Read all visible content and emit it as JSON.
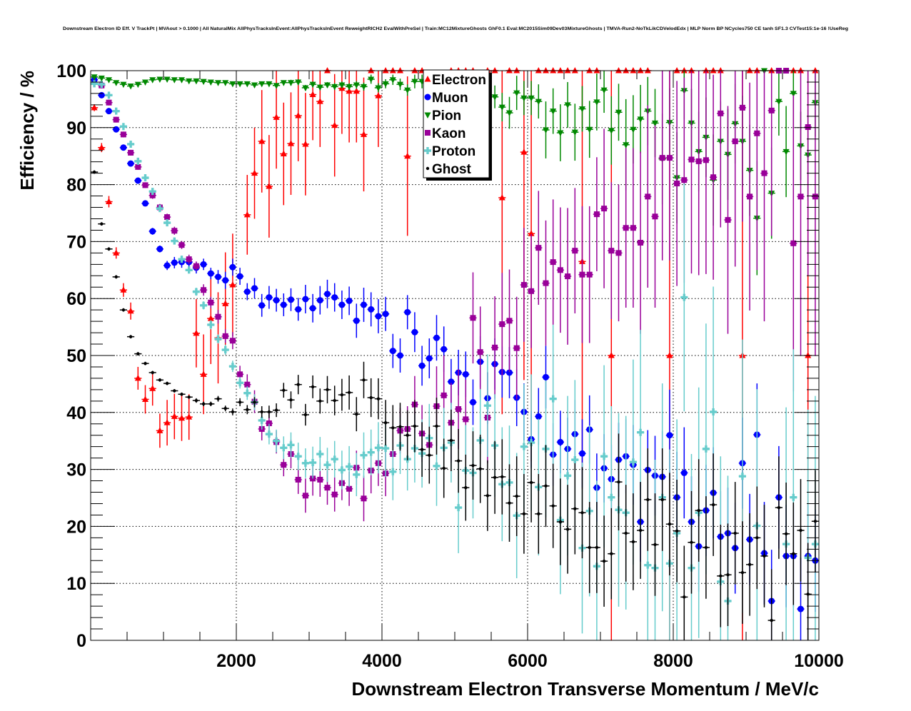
{
  "chart_data": {
    "type": "scatter",
    "title": "Downstream Electron ID Eff. V TrackPt | MVAout > 0.1000 | All NaturalMix AllPhysTracksInEvent:AllPhysTracksInEvent ReweightRICH2 EvalWithPreSel | Train:MC12MixtureGhosts GhF0.1 Eval:MC2015Sim09Dev03MixtureGhosts | TMVA-Run2-NoTkLikCDVelodEdx | MLP Norm BP NCycles750 CE tanh SF1.3 CVTest15:1e-16 !UseReg",
    "xlabel": "Downstream Electron Transverse Momentum / MeV/c",
    "ylabel": "Efficiency / %",
    "xlim": [
      0,
      10000
    ],
    "ylim": [
      0,
      100
    ],
    "x_ticks": [
      "2000",
      "4000",
      "6000",
      "8000",
      "10000"
    ],
    "x_tick_values": [
      2000,
      4000,
      6000,
      8000,
      10000
    ],
    "y_ticks": [
      "0",
      "10",
      "20",
      "30",
      "40",
      "50",
      "60",
      "70",
      "80",
      "90",
      "100"
    ],
    "y_tick_values": [
      0,
      10,
      20,
      30,
      40,
      50,
      60,
      70,
      80,
      90,
      100
    ],
    "grid": true,
    "legend_position": "top-center",
    "bin_width": 100,
    "x_first_bin_center": 50,
    "series": [
      {
        "name": "Electron",
        "color": "#ff0000",
        "marker": "triangle-up",
        "values": [
          93.5,
          86.5,
          77,
          68,
          61.5,
          57.8,
          46,
          42.3,
          44.2,
          36.8,
          38.2,
          39.3,
          39,
          39.2,
          53.9,
          46.7,
          56.5,
          53.1,
          59.1,
          62.4,
          null,
          74.7,
          82,
          87.6,
          79.7,
          91.8,
          85.4,
          87.2,
          92.1,
          87.1,
          95.8,
          94.6,
          100,
          90.4,
          96.9,
          96.4,
          96.4,
          88.8,
          100,
          95.6,
          100,
          100,
          100,
          85,
          100,
          100,
          null,
          null,
          null,
          100,
          100,
          100,
          100,
          null,
          100,
          100,
          77.7,
          100,
          100,
          85.7,
          71.4,
          100,
          100,
          100,
          100,
          100,
          100,
          66.5,
          100,
          100,
          null,
          50,
          100,
          100,
          100,
          100,
          100,
          null,
          null,
          50,
          100,
          100,
          100,
          null,
          100,
          100,
          100,
          null,
          null,
          50,
          100,
          100,
          null,
          100,
          null,
          null,
          100,
          100,
          50,
          100
        ],
        "err": [
          0.6,
          0.8,
          1,
          1,
          1.2,
          1.5,
          2,
          2.5,
          3,
          3,
          4,
          4,
          4,
          4,
          6,
          7,
          8,
          8,
          9,
          9,
          0,
          7,
          8,
          9,
          9,
          9,
          9,
          9,
          8,
          9,
          8,
          8,
          0,
          9,
          8,
          9,
          9,
          10,
          0,
          9,
          0,
          0,
          0,
          14,
          0,
          0,
          0,
          0,
          0,
          0,
          0,
          0,
          0,
          0,
          0,
          0,
          38,
          0,
          0,
          40,
          40,
          0,
          0,
          0,
          0,
          0,
          0,
          40,
          0,
          0,
          0,
          50,
          0,
          0,
          0,
          0,
          0,
          0,
          0,
          50,
          0,
          0,
          0,
          0,
          0,
          0,
          0,
          0,
          0,
          50,
          0,
          0,
          0,
          0,
          0,
          0,
          0,
          0,
          50,
          0
        ]
      },
      {
        "name": "Muon",
        "color": "#0000ff",
        "marker": "circle",
        "values": [
          98.4,
          95.7,
          92.9,
          89.7,
          86.5,
          83.7,
          80.7,
          76.7,
          71.8,
          68.7,
          65.8,
          66.3,
          66.4,
          66.4,
          65.4,
          66,
          64.4,
          63.8,
          63.2,
          65.5,
          63.9,
          61.2,
          61.8,
          58.8,
          60.2,
          59.7,
          58.9,
          59.8,
          58.1,
          59.9,
          58.3,
          59.7,
          60.8,
          60.2,
          58.9,
          59.6,
          56.1,
          58.9,
          58.1,
          56.9,
          57.3,
          50.8,
          50,
          57.6,
          54.1,
          48.2,
          49.5,
          53.1,
          51.1,
          45.4,
          47,
          46.7,
          41.8,
          48.9,
          42.5,
          48.5,
          47.1,
          47,
          42.6,
          40.1,
          35.3,
          39.3,
          46.2,
          32.6,
          34.8,
          33.6,
          36.2,
          32.8,
          37,
          26.8,
          30.2,
          28.3,
          31.7,
          32.3,
          30.8,
          20.8,
          29.9,
          28.9,
          28.7,
          36,
          25.1,
          29.4,
          20.8,
          16.5,
          22.8,
          25.9,
          18.2,
          18.8,
          16.2,
          31.1,
          17.7,
          36.1,
          15.3,
          6.9,
          25.1,
          14.8,
          14.8,
          5.5,
          14.8,
          14
        ],
        "err": [
          0.5,
          0.5,
          0.5,
          0.5,
          0.5,
          0.5,
          0.5,
          0.5,
          0.6,
          0.6,
          0.8,
          1,
          1,
          1,
          1,
          1,
          1,
          1.2,
          1.5,
          1.5,
          1.5,
          1.5,
          1.8,
          2,
          2,
          2,
          2,
          2,
          2,
          2.5,
          2.5,
          2.5,
          2.5,
          2.5,
          2.5,
          2.5,
          3,
          3,
          3,
          3,
          3,
          3,
          3,
          3,
          3.5,
          3.5,
          3.5,
          4,
          4,
          4,
          4,
          4,
          4,
          4.5,
          4.5,
          4.5,
          4.5,
          4.5,
          5,
          5,
          5,
          5,
          5.5,
          5.5,
          5.5,
          5.5,
          6,
          6,
          6,
          6,
          6,
          6,
          6.5,
          6.5,
          7,
          7,
          7,
          7,
          8,
          8,
          8,
          8,
          8,
          8,
          8,
          8,
          8,
          8,
          8,
          8,
          8,
          9,
          9,
          9,
          9,
          9,
          9,
          9,
          9,
          9
        ]
      },
      {
        "name": "Pion",
        "color": "#008800",
        "marker": "triangle-down",
        "values": [
          98.9,
          98.7,
          98.4,
          97.9,
          97.6,
          97.3,
          97.6,
          98,
          98.4,
          98.5,
          98.5,
          98.4,
          98.4,
          98.2,
          98.2,
          98.1,
          98,
          97.9,
          97.9,
          97.7,
          97.7,
          97.7,
          97.5,
          97.7,
          97.7,
          97.4,
          97.9,
          97.9,
          98,
          97,
          97.6,
          97.1,
          97.5,
          97.2,
          97.5,
          97.2,
          97.5,
          97.2,
          98.5,
          97,
          97.7,
          98.4,
          97.6,
          96.6,
          98.1,
          98.1,
          null,
          null,
          null,
          null,
          null,
          null,
          null,
          null,
          96.4,
          95.4,
          93.6,
          92.6,
          96.1,
          95.2,
          95.2,
          94.6,
          89.6,
          92.9,
          89.1,
          94,
          89.2,
          93.3,
          89.7,
          94.5,
          96.6,
          89.5,
          92.7,
          87,
          89.7,
          91.5,
          92.9,
          90.8,
          84.5,
          90.9,
          81.2,
          96.5,
          90.8,
          85.8,
          88.3,
          80.8,
          87.6,
          85.3,
          90.7,
          87.6,
          82.5,
          74.1,
          100,
          78.5,
          94.6,
          85.8,
          96,
          86.8,
          85.2,
          94.4
        ],
        "err": [
          0.3,
          0.3,
          0.3,
          0.3,
          0.3,
          0.3,
          0.3,
          0.3,
          0.3,
          0.3,
          0.3,
          0.3,
          0.3,
          0.3,
          0.3,
          0.3,
          0.3,
          0.3,
          0.3,
          0.3,
          0.3,
          0.4,
          0.4,
          0.4,
          0.4,
          0.4,
          0.4,
          0.5,
          0.5,
          0.5,
          0.5,
          0.5,
          0.5,
          0.6,
          0.6,
          0.6,
          0.7,
          0.7,
          0.8,
          0.8,
          0.8,
          0.9,
          1,
          1,
          1.2,
          1.2,
          1.3,
          1.3,
          1.4,
          1.4,
          1.5,
          1.5,
          1.6,
          1.6,
          1.7,
          2,
          2.5,
          2.8,
          3,
          3,
          3,
          3,
          5,
          4,
          5,
          4,
          5,
          4,
          5,
          5,
          4,
          6,
          5,
          8,
          6,
          6,
          6,
          6,
          8,
          6,
          8,
          5,
          6,
          7,
          7,
          8,
          7,
          8,
          7,
          8,
          8,
          10,
          0,
          8,
          6,
          8,
          6,
          6,
          8,
          6
        ]
      },
      {
        "name": "Kaon",
        "color": "#990099",
        "marker": "square",
        "values": [
          null,
          97.4,
          94.4,
          91.4,
          88.8,
          85.6,
          83.1,
          79.9,
          78.1,
          76,
          74.3,
          71.9,
          69.4,
          66.9,
          65.7,
          61.5,
          59.3,
          56.8,
          53.4,
          52.6,
          46.7,
          44.9,
          41.9,
          37.1,
          38.1,
          34.8,
          30.8,
          32.7,
          28.2,
          25.4,
          28.4,
          28.2,
          26.8,
          25.6,
          27.6,
          26.6,
          30.3,
          24.9,
          29.8,
          31.1,
          29.3,
          32.7,
          36.8,
          37.1,
          41.4,
          36.3,
          34.3,
          41.1,
          43,
          38.2,
          40.6,
          38.8,
          56.6,
          50.6,
          39.1,
          51.4,
          55.5,
          56.1,
          51.3,
          62.4,
          61.3,
          68.9,
          62.7,
          66.4,
          65,
          63.9,
          68.4,
          64.2,
          64.2,
          74.8,
          75.8,
          68.4,
          68,
          72.4,
          72.4,
          69.8,
          77.9,
          74.4,
          84.7,
          84.7,
          80.2,
          80.8,
          84.4,
          84.1,
          84.3,
          81.3,
          92.5,
          73.8,
          87.6,
          93.5,
          77.9,
          89,
          82,
          93,
          100,
          100,
          69.7,
          77.9,
          90.1,
          77.9
        ],
        "err": [
          0,
          0.5,
          0.5,
          0.5,
          0.5,
          0.5,
          0.5,
          0.5,
          0.6,
          0.6,
          0.6,
          0.7,
          0.7,
          0.8,
          0.8,
          1,
          1,
          1.2,
          1.2,
          1.5,
          1.5,
          1.8,
          2,
          2,
          2,
          2,
          2,
          2.5,
          2.5,
          3,
          3,
          3,
          3,
          3,
          3,
          3,
          3,
          4,
          4,
          4,
          4,
          4,
          4,
          4,
          5,
          5,
          5,
          7,
          7,
          7,
          7,
          7,
          8,
          8,
          8,
          9,
          9,
          9,
          9,
          10,
          10,
          10,
          11,
          11,
          11,
          12,
          11,
          12,
          12,
          10,
          14,
          12,
          12,
          14,
          14,
          16,
          16,
          16,
          18,
          18,
          18,
          18,
          20,
          20,
          20,
          18,
          20,
          20,
          22,
          20,
          20,
          24,
          26,
          22,
          0,
          0,
          26,
          28,
          26,
          28
        ]
      },
      {
        "name": "Proton",
        "color": "#66cccc",
        "marker": "cross",
        "values": [
          97.7,
          97.6,
          95.7,
          92.9,
          90.2,
          87.1,
          84.1,
          81.2,
          78.8,
          75.8,
          73.3,
          70.1,
          66.9,
          65,
          61.2,
          58.8,
          55.4,
          52.9,
          51,
          48.1,
          45.2,
          43.4,
          41.8,
          38.6,
          36.2,
          35,
          33.8,
          34.3,
          32.3,
          31.1,
          31.2,
          32.7,
          30.8,
          31.8,
          29.9,
          30.5,
          29.1,
          32.5,
          33,
          33.8,
          33.7,
          29.6,
          34.2,
          31.8,
          33.7,
          32.8,
          35.5,
          30.6,
          33.8,
          34.7,
          23.3,
          29.8,
          29.4,
          35.1,
          41.2,
          34.2,
          27.4,
          27.7,
          21.9,
          34,
          34.7,
          26.9,
          33.6,
          42.4,
          21.1,
          28.9,
          31.7,
          16.2,
          22.7,
          13,
          32.3,
          25.1,
          22.9,
          22.4,
          31.3,
          36.5,
          13.2,
          12.7,
          25.1,
          13.5,
          18.8,
          60.2,
          12.7,
          22.4,
          33.6,
          40.1,
          10.3,
          6.9,
          null,
          28.8,
          null,
          20.1,
          null,
          null,
          null,
          16.9,
          25.1,
          null,
          14.5,
          16.9
        ],
        "err": [
          0.4,
          0.4,
          0.4,
          0.4,
          0.4,
          0.4,
          0.5,
          0.5,
          0.5,
          0.5,
          0.5,
          0.6,
          0.6,
          0.6,
          0.7,
          0.7,
          0.8,
          0.8,
          0.9,
          1,
          1,
          1.2,
          1.4,
          1.6,
          1.8,
          2,
          2,
          2.2,
          2.4,
          2.6,
          2.8,
          3,
          3,
          3.2,
          3.4,
          3.6,
          3.8,
          4,
          4,
          4.5,
          5,
          5,
          5,
          5.5,
          6,
          6,
          6,
          7,
          7,
          7,
          8,
          8,
          8,
          9,
          9,
          9,
          10,
          10,
          11,
          11,
          12,
          12,
          12,
          13,
          13,
          14,
          14,
          15,
          15,
          15,
          16,
          16,
          17,
          17,
          18,
          18,
          18,
          19,
          20,
          20,
          20,
          20,
          20,
          22,
          22,
          22,
          22,
          22,
          0,
          24,
          0,
          24,
          0,
          0,
          0,
          24,
          26,
          0,
          26,
          26
        ]
      },
      {
        "name": "Ghost",
        "color": "#000000",
        "marker": "dot",
        "values": [
          82.2,
          73.1,
          68.7,
          63.8,
          58,
          53.3,
          50.3,
          48.6,
          47,
          45.7,
          45.1,
          43.8,
          43.2,
          42.7,
          42.1,
          41.5,
          41.5,
          42.4,
          40.7,
          40.1,
          41.8,
          40.5,
          41.8,
          40.1,
          40.1,
          40.4,
          43.9,
          42.2,
          44.9,
          39.6,
          44.5,
          42,
          44,
          42.1,
          43.1,
          43.5,
          39.7,
          45.7,
          42.6,
          42.4,
          38.2,
          37.3,
          37.5,
          36,
          37.6,
          33.5,
          32.5,
          37.6,
          30.2,
          35.1,
          31.5,
          26.8,
          30.7,
          30.1,
          25.4,
          28.6,
          28.7,
          24.1,
          25.3,
          22.2,
          27.7,
          22.2,
          27.1,
          23.6,
          20.8,
          19.5,
          23.1,
          22.4,
          16.3,
          16.3,
          13.9,
          15.2,
          27.8,
          18.8,
          17.3,
          19.3,
          24.7,
          16.8,
          24.7,
          20.4,
          19.2,
          7.6,
          17.2,
          22.8,
          16.3,
          23.8,
          11.3,
          11.5,
          18.8,
          11.9,
          13.3,
          18,
          14.8,
          3.5,
          23.3,
          18.7,
          15.2,
          19.3,
          8.1,
          20.9
        ],
        "err": [
          0.3,
          0.3,
          0.3,
          0.3,
          0.3,
          0.3,
          0.3,
          0.3,
          0.3,
          0.3,
          0.3,
          0.3,
          0.3,
          0.3,
          0.4,
          0.4,
          0.4,
          0.5,
          0.5,
          0.6,
          0.7,
          0.8,
          0.9,
          1,
          1.1,
          1.2,
          1.3,
          1.5,
          1.7,
          1.9,
          2,
          2.2,
          2.4,
          2.6,
          2.8,
          3,
          3,
          3.2,
          3.4,
          3.6,
          4,
          4,
          4.2,
          4.4,
          4.6,
          4.8,
          5,
          5,
          5.2,
          5.4,
          5.6,
          5.8,
          6,
          6,
          6.2,
          6.4,
          6.6,
          6.8,
          7,
          7,
          7,
          7,
          7.2,
          7.4,
          7.6,
          7.8,
          8,
          8,
          8,
          8,
          8,
          8,
          8.5,
          8.5,
          8.5,
          8.5,
          9,
          9,
          9,
          9,
          9,
          9,
          9,
          9,
          9,
          9,
          9,
          9,
          9,
          9,
          9,
          9,
          9,
          9,
          9,
          9,
          9,
          9,
          9,
          9
        ]
      }
    ]
  }
}
